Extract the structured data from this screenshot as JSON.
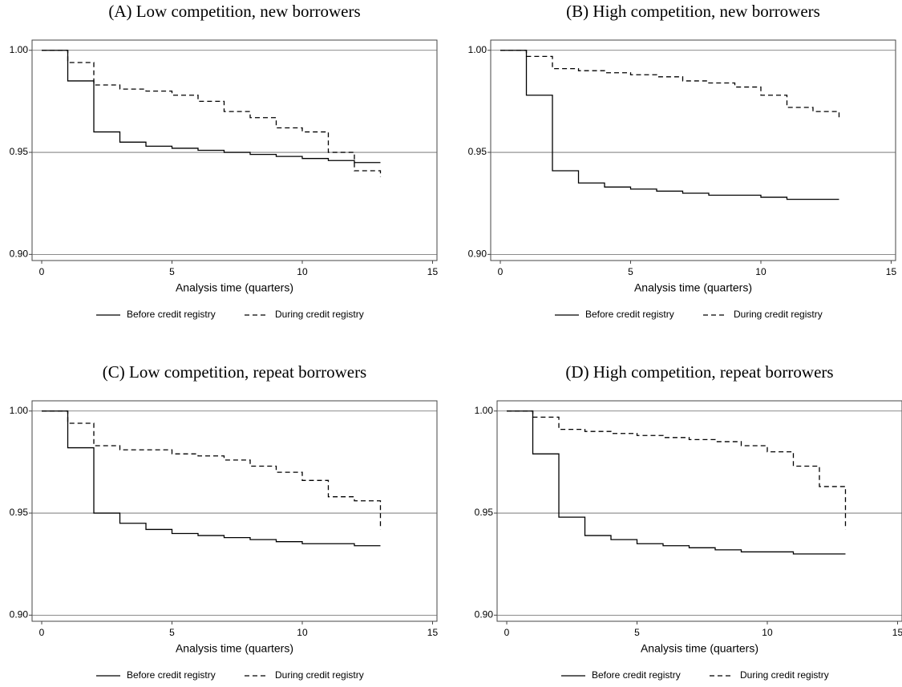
{
  "chart_data": [
    {
      "type": "line",
      "title": "(A) Low competition, new borrowers",
      "xlabel": "Analysis time (quarters)",
      "step": true,
      "grid": true,
      "legend": "bottom",
      "x": [
        0,
        1,
        2,
        3,
        4,
        5,
        6,
        7,
        8,
        9,
        10,
        11,
        12,
        13
      ],
      "series": [
        {
          "name": "Before credit registry",
          "color": "#000000",
          "linestyle": "solid",
          "values": [
            1.0,
            0.985,
            0.96,
            0.955,
            0.953,
            0.952,
            0.951,
            0.95,
            0.949,
            0.948,
            0.947,
            0.946,
            0.945,
            0.945
          ]
        },
        {
          "name": "During credit registry",
          "color": "#000000",
          "linestyle": "dashed",
          "values": [
            1.0,
            0.994,
            0.983,
            0.981,
            0.98,
            0.978,
            0.975,
            0.97,
            0.967,
            0.962,
            0.96,
            0.95,
            0.941,
            0.938
          ]
        }
      ],
      "xlim": [
        -0.37,
        15.17
      ],
      "xticks": [
        0,
        5,
        10,
        15
      ],
      "ylim": [
        0.897,
        1.005
      ],
      "yticks": [
        {
          "value": 1.0,
          "label": "1.00"
        },
        {
          "value": 0.95,
          "label": "0.95"
        },
        {
          "value": 0.9,
          "label": "0.90"
        }
      ]
    },
    {
      "type": "line",
      "title": "(B) High competition, new borrowers",
      "xlabel": "Analysis time (quarters)",
      "step": true,
      "grid": true,
      "legend": "bottom",
      "x": [
        0,
        1,
        2,
        3,
        4,
        5,
        6,
        7,
        8,
        9,
        10,
        11,
        12,
        13
      ],
      "series": [
        {
          "name": "Before credit registry",
          "color": "#000000",
          "linestyle": "solid",
          "values": [
            1.0,
            0.978,
            0.941,
            0.935,
            0.933,
            0.932,
            0.931,
            0.93,
            0.929,
            0.929,
            0.928,
            0.927,
            0.927,
            0.927
          ]
        },
        {
          "name": "During credit registry",
          "color": "#000000",
          "linestyle": "dashed",
          "values": [
            1.0,
            0.997,
            0.991,
            0.99,
            0.989,
            0.988,
            0.987,
            0.985,
            0.984,
            0.982,
            0.978,
            0.972,
            0.97,
            0.967
          ]
        }
      ],
      "xlim": [
        -0.37,
        15.17
      ],
      "xticks": [
        0,
        5,
        10,
        15
      ],
      "ylim": [
        0.897,
        1.005
      ],
      "yticks": [
        {
          "value": 1.0,
          "label": "1.00"
        },
        {
          "value": 0.95,
          "label": "0.95"
        },
        {
          "value": 0.9,
          "label": "0.90"
        }
      ]
    },
    {
      "type": "line",
      "title": "(C) Low competition, repeat borrowers",
      "xlabel": "Analysis time (quarters)",
      "step": true,
      "grid": true,
      "legend": "bottom",
      "x": [
        0,
        1,
        2,
        3,
        4,
        5,
        6,
        7,
        8,
        9,
        10,
        11,
        12,
        13
      ],
      "series": [
        {
          "name": "Before credit registry",
          "color": "#000000",
          "linestyle": "solid",
          "values": [
            1.0,
            0.982,
            0.95,
            0.945,
            0.942,
            0.94,
            0.939,
            0.938,
            0.937,
            0.936,
            0.935,
            0.935,
            0.934,
            0.934
          ]
        },
        {
          "name": "During credit registry",
          "color": "#000000",
          "linestyle": "dashed",
          "values": [
            1.0,
            0.994,
            0.983,
            0.981,
            0.981,
            0.979,
            0.978,
            0.976,
            0.973,
            0.97,
            0.966,
            0.958,
            0.956,
            0.942
          ]
        }
      ],
      "xlim": [
        -0.37,
        15.17
      ],
      "xticks": [
        0,
        5,
        10,
        15
      ],
      "ylim": [
        0.897,
        1.005
      ],
      "yticks": [
        {
          "value": 1.0,
          "label": "1.00"
        },
        {
          "value": 0.95,
          "label": "0.95"
        },
        {
          "value": 0.9,
          "label": "0.90"
        }
      ]
    },
    {
      "type": "line",
      "title": "(D) High competition, repeat borrowers",
      "xlabel": "Analysis time (quarters)",
      "step": true,
      "grid": true,
      "legend": "bottom",
      "x": [
        0,
        1,
        2,
        3,
        4,
        5,
        6,
        7,
        8,
        9,
        10,
        11,
        12,
        13
      ],
      "series": [
        {
          "name": "Before credit registry",
          "color": "#000000",
          "linestyle": "solid",
          "values": [
            1.0,
            0.979,
            0.948,
            0.939,
            0.937,
            0.935,
            0.934,
            0.933,
            0.932,
            0.931,
            0.931,
            0.93,
            0.93,
            0.93
          ]
        },
        {
          "name": "During credit registry",
          "color": "#000000",
          "linestyle": "dashed",
          "values": [
            1.0,
            0.997,
            0.991,
            0.99,
            0.989,
            0.988,
            0.987,
            0.986,
            0.985,
            0.983,
            0.98,
            0.973,
            0.963,
            0.942
          ]
        }
      ],
      "xlim": [
        -0.37,
        15.17
      ],
      "xticks": [
        0,
        5,
        10,
        15
      ],
      "ylim": [
        0.897,
        1.005
      ],
      "yticks": [
        {
          "value": 1.0,
          "label": "1.00"
        },
        {
          "value": 0.95,
          "label": "0.95"
        },
        {
          "value": 0.9,
          "label": "0.90"
        }
      ]
    }
  ]
}
